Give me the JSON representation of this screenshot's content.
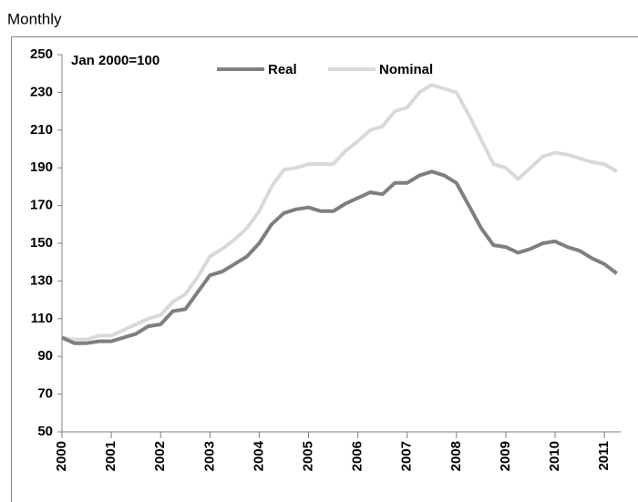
{
  "chart_data": {
    "type": "line",
    "title": "Monthly",
    "annotation": "Jan 2000=100",
    "x": [
      2000,
      2000.25,
      2000.5,
      2000.75,
      2001,
      2001.25,
      2001.5,
      2001.75,
      2002,
      2002.25,
      2002.5,
      2002.75,
      2003,
      2003.25,
      2003.5,
      2003.75,
      2004,
      2004.25,
      2004.5,
      2004.75,
      2005,
      2005.25,
      2005.5,
      2005.75,
      2006,
      2006.25,
      2006.5,
      2006.75,
      2007,
      2007.25,
      2007.5,
      2007.75,
      2008,
      2008.25,
      2008.5,
      2008.75,
      2009,
      2009.25,
      2009.5,
      2009.75,
      2010,
      2010.25,
      2010.5,
      2010.75,
      2011,
      2011.25
    ],
    "series": [
      {
        "name": "Real",
        "color": "#7f7f7f",
        "values": [
          100,
          97,
          97,
          98,
          98,
          100,
          102,
          106,
          107,
          114,
          115,
          124,
          133,
          135,
          139,
          143,
          150,
          160,
          166,
          168,
          169,
          167,
          167,
          171,
          174,
          177,
          176,
          182,
          182,
          186,
          188,
          186,
          182,
          170,
          158,
          149,
          148,
          145,
          147,
          150,
          151,
          148,
          146,
          142,
          139,
          134
        ]
      },
      {
        "name": "Nominal",
        "color": "#d9d9d9",
        "values": [
          100,
          99,
          99,
          101,
          101,
          104,
          107,
          110,
          112,
          119,
          123,
          132,
          143,
          147,
          152,
          158,
          167,
          180,
          189,
          190,
          192,
          192,
          192,
          199,
          204,
          210,
          212,
          220,
          222,
          230,
          234,
          232,
          230,
          218,
          205,
          192,
          190,
          184,
          190,
          196,
          198,
          197,
          195,
          193,
          192,
          188
        ]
      }
    ],
    "xlim": [
      2000,
      2011.33
    ],
    "xticks": [
      2000,
      2001,
      2002,
      2003,
      2004,
      2005,
      2006,
      2007,
      2008,
      2009,
      2010,
      2011
    ],
    "ylim": [
      50,
      250
    ],
    "yticks": [
      50,
      70,
      90,
      110,
      130,
      150,
      170,
      190,
      210,
      230,
      250
    ],
    "grid": false
  }
}
